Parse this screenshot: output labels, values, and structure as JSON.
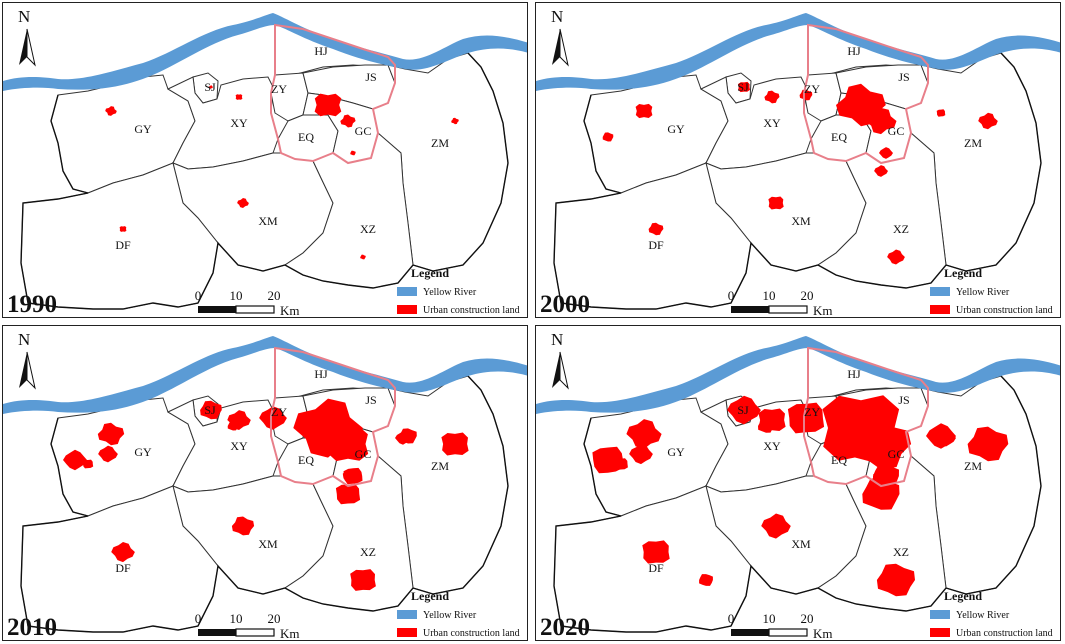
{
  "panels": [
    {
      "year": "1990"
    },
    {
      "year": "2000"
    },
    {
      "year": "2010"
    },
    {
      "year": "2020"
    }
  ],
  "north_label": "N",
  "counties": {
    "gy": "GY",
    "sj": "SJ",
    "xy": "XY",
    "zy": "ZY",
    "hj": "HJ",
    "js": "JS",
    "eq": "EQ",
    "gc": "GC",
    "zm": "ZM",
    "xm": "XM",
    "xz": "XZ",
    "df": "DF"
  },
  "legend": {
    "title": "Legend",
    "river": "Yellow River",
    "urban": "Urban construction land",
    "river_color": "#5b9bd5",
    "urban_color": "#ff0000"
  },
  "scale": {
    "t0": "0",
    "t1": "10",
    "t2": "20",
    "unit": "Km"
  }
}
